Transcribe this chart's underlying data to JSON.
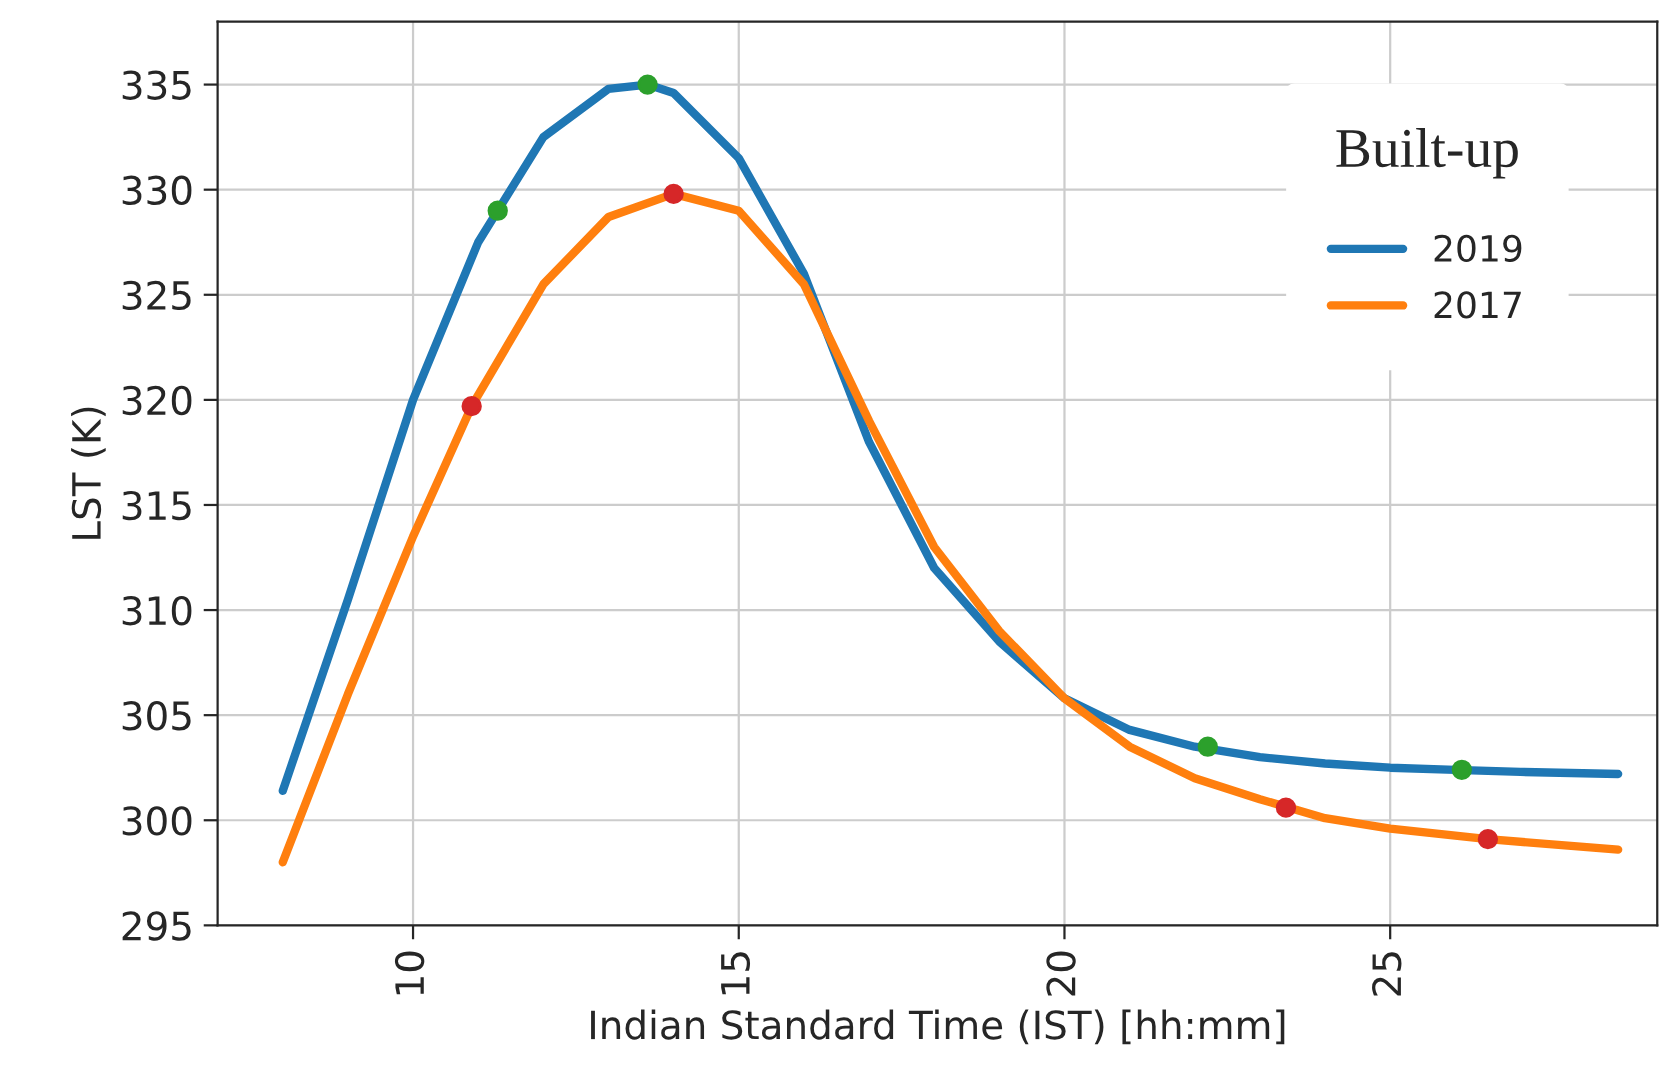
{
  "chart_data": {
    "type": "line",
    "xlabel": "Indian Standard Time (IST) [hh:mm]",
    "ylabel": "LST (K)",
    "legend_title": "Built-up",
    "legend": "top right",
    "grid": true,
    "xlim": [
      7,
      29.1
    ],
    "xticks": [
      10,
      15,
      20,
      25
    ],
    "ylim": [
      295,
      338
    ],
    "yticks": [
      295,
      300,
      305,
      310,
      315,
      320,
      325,
      330,
      335
    ],
    "series": [
      {
        "name": "2019",
        "color": "#1f77b4",
        "x": [
          8,
          9,
          10,
          11,
          12,
          13,
          13.6,
          14,
          15,
          16,
          17,
          18,
          19,
          20,
          21,
          22,
          23,
          24,
          25,
          26,
          27,
          28.5
        ],
        "values": [
          301.4,
          310.5,
          320,
          327.5,
          332.5,
          334.8,
          335,
          334.6,
          331.5,
          326,
          318,
          312,
          308.5,
          305.8,
          304.3,
          303.5,
          303,
          302.7,
          302.5,
          302.4,
          302.3,
          302.2
        ]
      },
      {
        "name": "2017",
        "color": "#ff7f0e",
        "x": [
          8,
          9,
          10,
          10.9,
          12,
          13,
          14,
          15,
          16,
          17,
          18,
          19,
          20,
          21,
          22,
          23,
          24,
          25,
          26.5,
          28.5
        ],
        "values": [
          298,
          306,
          313.5,
          319.7,
          325.5,
          328.7,
          329.8,
          329,
          325.5,
          319,
          313,
          309,
          305.8,
          303.5,
          302,
          301,
          300.1,
          299.6,
          299.1,
          298.6
        ]
      },
      {
        "type": "scatter",
        "color": "#2ca02c",
        "marker": "circle",
        "x": [
          11.3,
          13.6,
          22.2,
          26.1
        ],
        "values": [
          329,
          335,
          303.5,
          302.4
        ]
      },
      {
        "type": "scatter",
        "color": "#d62728",
        "marker": "circle",
        "x": [
          10.9,
          14,
          23.4,
          26.5
        ],
        "values": [
          319.7,
          329.8,
          300.6,
          299.1
        ]
      }
    ]
  }
}
